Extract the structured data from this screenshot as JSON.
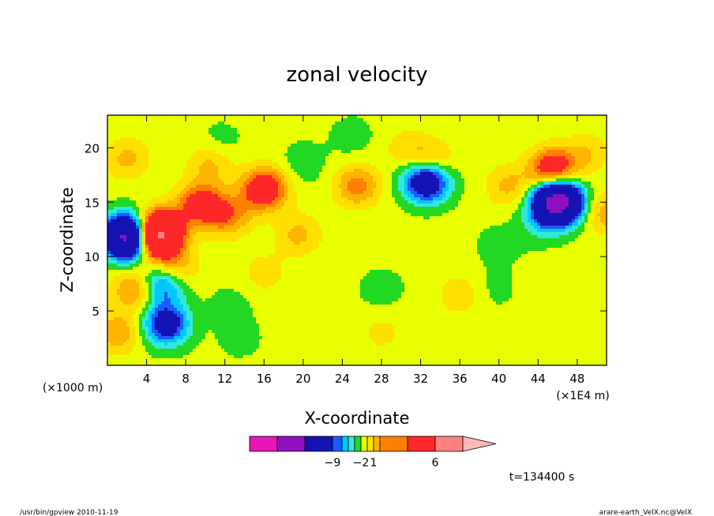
{
  "chart_data": {
    "type": "heatmap",
    "title": "zonal velocity",
    "xlabel": "X-coordinate",
    "ylabel": "Z-coordinate",
    "x_unit_label": "(×1E4 m)",
    "y_unit_label": "(×1000 m)",
    "x_ticks": [
      "4",
      "8",
      "12",
      "16",
      "20",
      "24",
      "28",
      "32",
      "36",
      "40",
      "44",
      "48"
    ],
    "y_ticks": [
      "5",
      "10",
      "15",
      "20"
    ],
    "xlim": [
      0,
      51
    ],
    "ylim": [
      0,
      23
    ],
    "color_levels": [
      -12,
      -9,
      -6,
      -2,
      -1.5,
      -1,
      -0.5,
      0,
      0.5,
      1,
      1.5,
      2,
      6,
      9,
      12,
      15
    ],
    "colors": [
      "#e817b8",
      "#9010c0",
      "#1414b4",
      "#1e5aff",
      "#00c8ff",
      "#33e8d8",
      "#22d822",
      "#e8ff00",
      "#ffdf00",
      "#ffb400",
      "#ff7f00",
      "#ff2828",
      "#ff8080",
      "#ffb8b8"
    ],
    "colorbar_labels": [
      {
        "text": "−9",
        "index": 2
      },
      {
        "text": "−2",
        "index": 6
      },
      {
        "text": "1",
        "index": 8
      },
      {
        "text": "6",
        "index": 11
      }
    ],
    "features": [
      {
        "x": 2.2,
        "z": 11.8,
        "value": -8
      },
      {
        "x": 4.5,
        "z": 11.8,
        "value": 5
      },
      {
        "x": 5.6,
        "z": 12.4,
        "value": 3
      },
      {
        "x": 9.5,
        "z": 14.8,
        "value": 2.5
      },
      {
        "x": 12.3,
        "z": 13.8,
        "value": 1.6
      },
      {
        "x": 16.0,
        "z": 16.2,
        "value": 3
      },
      {
        "x": 19.5,
        "z": 12.0,
        "value": 1.0
      },
      {
        "x": 25.5,
        "z": 16.5,
        "value": 1.6
      },
      {
        "x": 33.0,
        "z": 18.6,
        "value": 1.6
      },
      {
        "x": 32.6,
        "z": 17.0,
        "value": -4
      },
      {
        "x": 46.0,
        "z": 15.0,
        "value": -8
      },
      {
        "x": 45.5,
        "z": 18.0,
        "value": 3
      },
      {
        "x": 51.0,
        "z": 14.0,
        "value": 1.2
      },
      {
        "x": 40.0,
        "z": 11.0,
        "value": -0.4
      },
      {
        "x": 39.5,
        "z": 7.0,
        "value": -0.3
      },
      {
        "x": 44.0,
        "z": 13.0,
        "value": -0.6
      },
      {
        "x": 28.0,
        "z": 7.0,
        "value": -0.4
      },
      {
        "x": 30.5,
        "z": 20.0,
        "value": 0.6
      },
      {
        "x": 12.5,
        "z": 5.5,
        "value": -0.35
      },
      {
        "x": 13.5,
        "z": 2.5,
        "value": -0.35
      },
      {
        "x": 20.0,
        "z": 18.5,
        "value": -0.5
      },
      {
        "x": 11.5,
        "z": 20.5,
        "value": -0.4
      },
      {
        "x": 25.0,
        "z": 21.0,
        "value": -0.4
      },
      {
        "x": 3.0,
        "z": 7.0,
        "value": 1.8
      },
      {
        "x": 5.5,
        "z": 7.5,
        "value": -2.5
      },
      {
        "x": 6.0,
        "z": 3.8,
        "value": -3.0
      },
      {
        "x": 1.0,
        "z": 3.0,
        "value": 1.3
      },
      {
        "x": 2.0,
        "z": 19.0,
        "value": 1.0
      },
      {
        "x": 6.8,
        "z": 9.0,
        "value": 1.5
      },
      {
        "x": 16.0,
        "z": 8.5,
        "value": 0.6
      },
      {
        "x": 36.0,
        "z": 6.5,
        "value": 0.7
      },
      {
        "x": 28.0,
        "z": 3.0,
        "value": 0.5
      },
      {
        "x": 10.5,
        "z": 18.5,
        "value": 1.0
      },
      {
        "x": 41.0,
        "z": 16.5,
        "value": 1.0
      },
      {
        "x": 49.0,
        "z": 19.5,
        "value": 0.8
      }
    ],
    "timestamp": "t=134400 s"
  },
  "footer": {
    "left": "/usr/bin/gpview   2010-11-19",
    "right": "arare-earth_VelX.nc@VelX"
  }
}
